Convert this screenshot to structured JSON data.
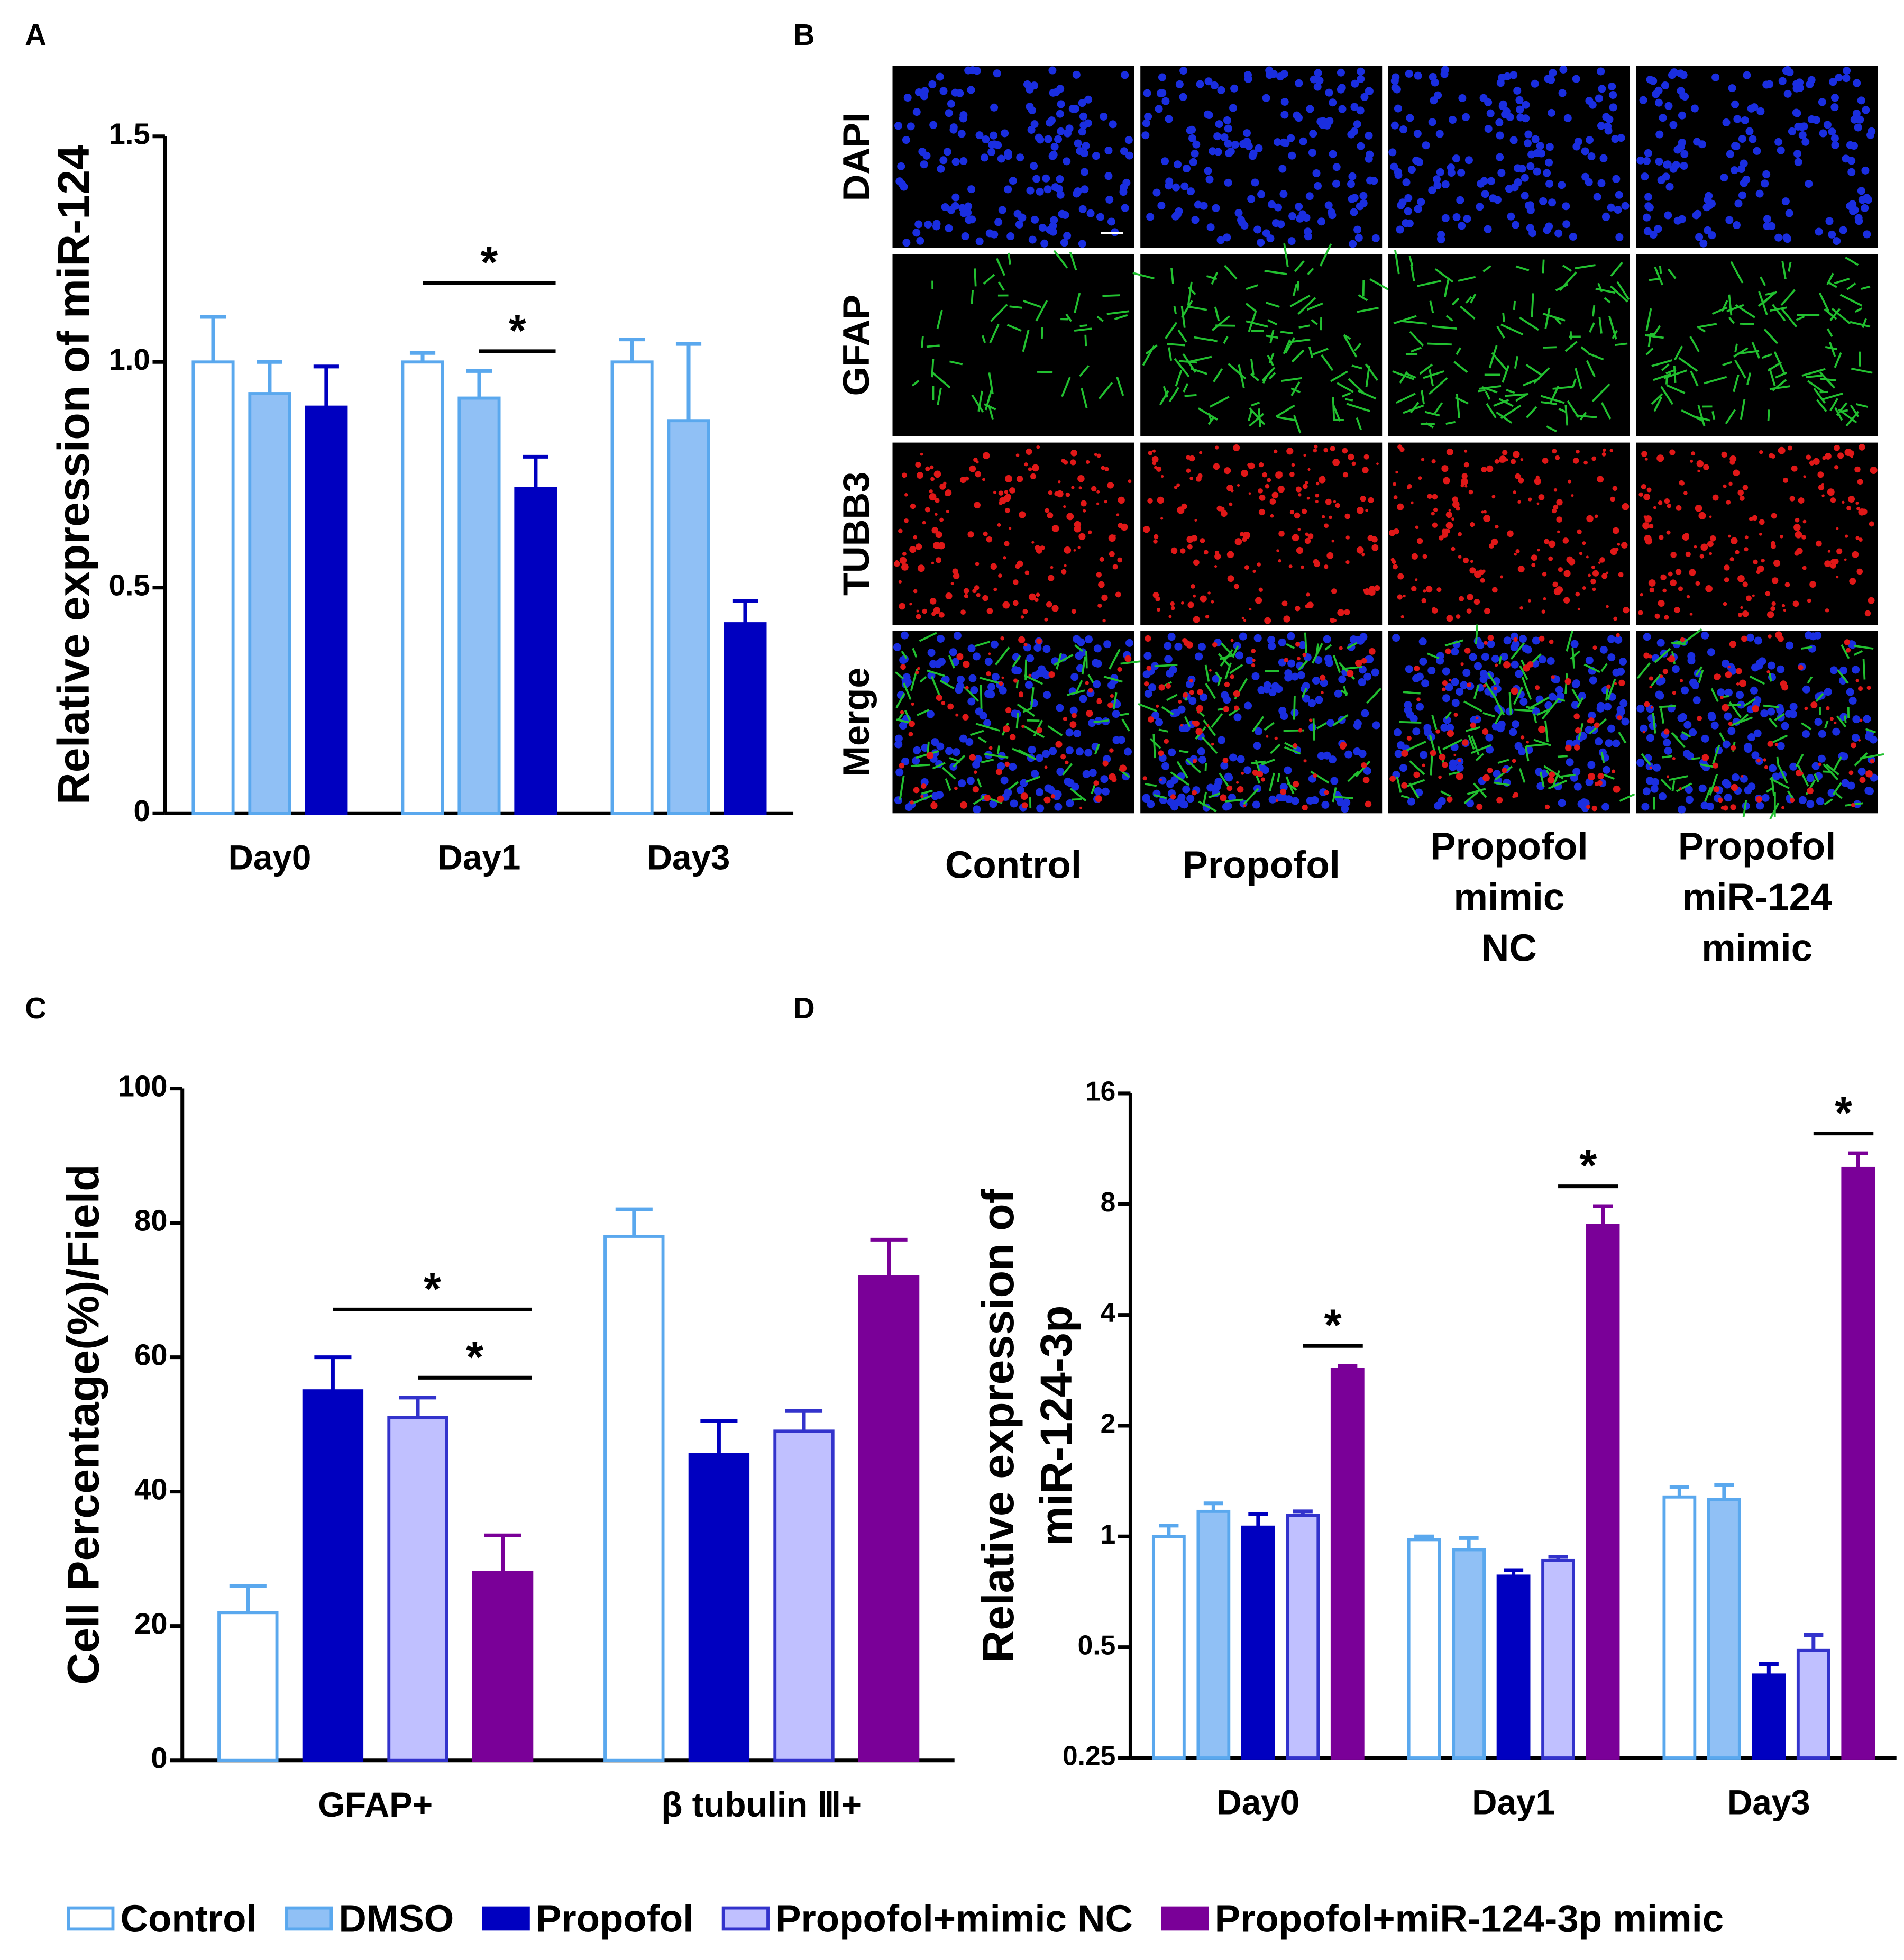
{
  "chart_data": [
    {
      "type": "bar",
      "label": "A",
      "ylabel": "Relative expression of miR-124",
      "categories": [
        "Day0",
        "Day1",
        "Day3"
      ],
      "ylim": [
        0,
        1.5
      ],
      "yticks": [
        0,
        0.5,
        {
          "value": 1,
          "label": "1.0"
        },
        1.5
      ],
      "series": [
        {
          "color": "#ffffff",
          "edge": "#5aa8ee",
          "values": [
            1.0,
            1.0,
            1.0
          ],
          "errors": [
            0.1,
            0.02,
            0.05
          ]
        },
        {
          "color": "#90c0f5",
          "edge": "#5aa8ee",
          "values": [
            0.93,
            0.92,
            0.87
          ],
          "errors": [
            0.07,
            0.06,
            0.17
          ]
        },
        {
          "color": "#0000c0",
          "edge": "#0000c0",
          "values": [
            0.9,
            0.72,
            0.42
          ],
          "errors": [
            0.09,
            0.07,
            0.05
          ]
        }
      ],
      "significance": [
        {
          "label": "*",
          "category": 1,
          "between": [
            1,
            2
          ]
        },
        {
          "label": "*",
          "category": 1,
          "between": [
            0,
            2
          ]
        }
      ]
    },
    {
      "type": "bar",
      "label": "C",
      "ylabel": "Cell Percentage(%)/Field",
      "categories": [
        "GFAP+",
        "β tubulin Ⅲ+"
      ],
      "ylim": [
        0,
        100
      ],
      "yticks": [
        0,
        20,
        40,
        60,
        80,
        100
      ],
      "series": [
        {
          "color": "#ffffff",
          "edge": "#5aa8ee",
          "values": [
            22,
            78
          ],
          "errors": [
            4,
            4
          ]
        },
        {
          "color": "#0000c0",
          "edge": "#0000c0",
          "values": [
            55,
            45.5
          ],
          "errors": [
            5,
            5
          ]
        },
        {
          "color": "#c0c0ff",
          "edge": "#3333cc",
          "values": [
            51,
            49
          ],
          "errors": [
            3,
            3
          ]
        },
        {
          "color": "#7a0098",
          "edge": "#7a0098",
          "values": [
            28,
            72
          ],
          "errors": [
            5.5,
            5.5
          ]
        }
      ],
      "significance": [
        {
          "label": "*",
          "category": 0,
          "between": [
            2,
            3
          ]
        },
        {
          "label": "*",
          "category": 0,
          "between": [
            1,
            3
          ]
        }
      ]
    },
    {
      "type": "bar",
      "label": "D",
      "ylabel": [
        "Relative expression of",
        "miR-124-3p"
      ],
      "log_scale": true,
      "categories": [
        "Day0",
        "Day1",
        "Day3"
      ],
      "ylim": [
        0.25,
        16
      ],
      "yticks": [
        0.25,
        0.5,
        1,
        2,
        4,
        8,
        16
      ],
      "series": [
        {
          "name": "Control",
          "color": "#ffffff",
          "edge": "#5aa8ee",
          "values": [
            1.0,
            0.98,
            1.28
          ],
          "errors": [
            0.07,
            0.02,
            0.08
          ]
        },
        {
          "name": "DMSO",
          "color": "#90c0f5",
          "edge": "#5aa8ee",
          "values": [
            1.17,
            0.92,
            1.26
          ],
          "errors": [
            0.06,
            0.07,
            0.12
          ]
        },
        {
          "name": "Propofol",
          "color": "#0000c0",
          "edge": "#0000c0",
          "values": [
            1.06,
            0.78,
            0.42
          ],
          "errors": [
            0.09,
            0.03,
            0.03
          ]
        },
        {
          "name": "Propofol+mimic NC",
          "color": "#c0c0ff",
          "edge": "#3333cc",
          "values": [
            1.14,
            0.86,
            0.49
          ],
          "errors": [
            0.03,
            0.02,
            0.05
          ]
        },
        {
          "name": "Propofol+miR-124-3p mimic",
          "color": "#7a0098",
          "edge": "#7a0098",
          "values": [
            2.85,
            7.0,
            10.0
          ],
          "errors": [
            0.06,
            0.9,
            1.0
          ]
        }
      ],
      "significance": [
        {
          "label": "*",
          "category": 0,
          "between": [
            3,
            4
          ]
        },
        {
          "label": "*",
          "category": 1,
          "between": [
            3,
            4
          ]
        },
        {
          "label": "*",
          "category": 2,
          "between": [
            3,
            4
          ]
        }
      ]
    }
  ],
  "image_panel": {
    "label": "B",
    "rows": [
      {
        "label": "DAPI",
        "color": "#0000ee"
      },
      {
        "label": "GFAP",
        "color": "#00a040"
      },
      {
        "label": "TUBB3",
        "color": "#ee0000"
      },
      {
        "label": "Merge",
        "color": "#000000"
      }
    ],
    "columns": [
      [
        "Control"
      ],
      [
        "Propofol"
      ],
      [
        "Propofol",
        "mimic",
        "NC"
      ],
      [
        "Propofol",
        "miR-124",
        "mimic"
      ]
    ]
  }
}
